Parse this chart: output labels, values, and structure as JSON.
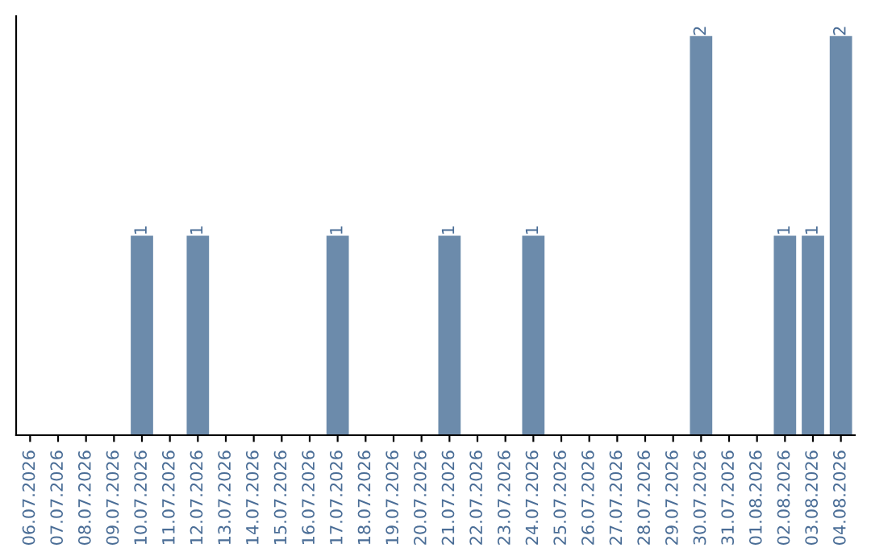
{
  "chart_data": {
    "type": "bar",
    "categories": [
      "06.07.2026",
      "07.07.2026",
      "08.07.2026",
      "09.07.2026",
      "10.07.2026",
      "11.07.2026",
      "12.07.2026",
      "13.07.2026",
      "14.07.2026",
      "15.07.2026",
      "16.07.2026",
      "17.07.2026",
      "18.07.2026",
      "19.07.2026",
      "20.07.2026",
      "21.07.2026",
      "22.07.2026",
      "23.07.2026",
      "24.07.2026",
      "25.07.2026",
      "26.07.2026",
      "27.07.2026",
      "28.07.2026",
      "29.07.2026",
      "30.07.2026",
      "31.07.2026",
      "01.08.2026",
      "02.08.2026",
      "03.08.2026",
      "04.08.2026"
    ],
    "values": [
      0,
      0,
      0,
      0,
      1,
      0,
      1,
      0,
      0,
      0,
      0,
      1,
      0,
      0,
      0,
      1,
      0,
      0,
      1,
      0,
      0,
      0,
      0,
      0,
      2,
      0,
      0,
      1,
      1,
      2
    ],
    "value_labels": [
      null,
      null,
      null,
      null,
      "1",
      null,
      "1",
      null,
      null,
      null,
      null,
      "1",
      null,
      null,
      null,
      "1",
      null,
      null,
      "1",
      null,
      null,
      null,
      null,
      null,
      "2",
      null,
      null,
      "1",
      "1",
      "2"
    ],
    "color": "#6c8bab",
    "tick_labels": "x",
    "grid": false,
    "legend": false
  }
}
